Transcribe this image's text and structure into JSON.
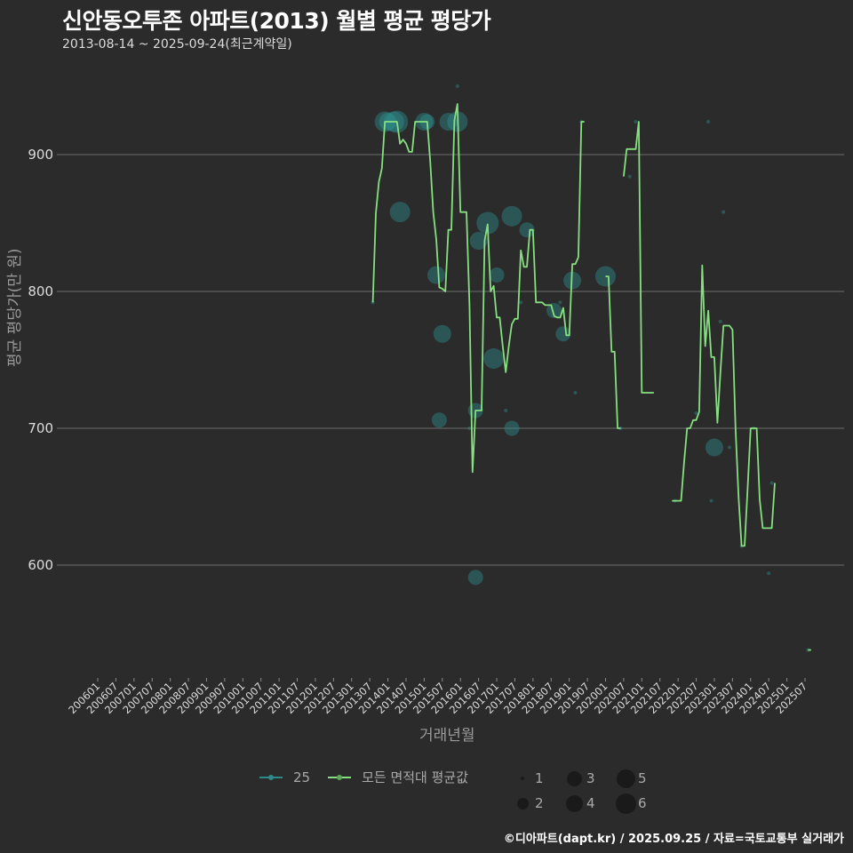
{
  "header": {
    "title": "신안동오투존 아파트(2013) 월별 평균 평당가",
    "subtitle": "2013-08-14 ~ 2025-09-24(최근계약일)"
  },
  "axes": {
    "ylabel": "평균 평당가(만 원)",
    "xlabel": "거래년월"
  },
  "legend": {
    "series": [
      {
        "label": "25",
        "color": "#2e8b8b"
      },
      {
        "label": "모든 면적대 평균값",
        "color": "#86e07f"
      }
    ],
    "sizes": [
      {
        "label": "1",
        "r": 2
      },
      {
        "label": "2",
        "r": 6
      },
      {
        "label": "3",
        "r": 9
      },
      {
        "label": "4",
        "r": 10
      },
      {
        "label": "5",
        "r": 11
      },
      {
        "label": "6",
        "r": 12
      }
    ]
  },
  "footer": {
    "credit": "©디아파트(dapt.kr) / 2025.09.25 / 자료=국토교통부 실거래가"
  },
  "colors": {
    "background": "#2b2b2b",
    "grid": "#6e6e6e",
    "line": "#86e07f",
    "bubble": "#2e8b8b",
    "tick_text": "#dcdcdc"
  },
  "chart_data": {
    "type": "line",
    "title": "신안동오투존 아파트(2013) 월별 평균 평당가",
    "subtitle": "2013-08-14 ~ 2025-09-24(최근계약일)",
    "xlabel": "거래년월",
    "ylabel": "평균 평당가(만 원)",
    "ylim": [
      520,
      960
    ],
    "yticks": [
      600,
      700,
      800,
      900
    ],
    "grid": true,
    "legend_position": "bottom",
    "x_tick_labels": [
      "200601",
      "200607",
      "200701",
      "200707",
      "200801",
      "200807",
      "200901",
      "200907",
      "201001",
      "201007",
      "201101",
      "201107",
      "201201",
      "201207",
      "201301",
      "201307",
      "201401",
      "201407",
      "201501",
      "201507",
      "201601",
      "201607",
      "201701",
      "201707",
      "201801",
      "201807",
      "201901",
      "201907",
      "202001",
      "202007",
      "202101",
      "202107",
      "202201",
      "202207",
      "202301",
      "202307",
      "202401",
      "202407",
      "202501",
      "202507"
    ],
    "series": [
      {
        "name": "모든 면적대 평균값",
        "segments": [
          [
            [
              "2013-08",
              792
            ],
            [
              "2013-09",
              857
            ],
            [
              "2013-10",
              880
            ],
            [
              "2013-11",
              890
            ],
            [
              "2013-12",
              924
            ],
            [
              "2014-01",
              924
            ],
            [
              "2014-02",
              924
            ],
            [
              "2014-03",
              924
            ],
            [
              "2014-04",
              924
            ],
            [
              "2014-05",
              908
            ],
            [
              "2014-06",
              911
            ],
            [
              "2014-07",
              908
            ],
            [
              "2014-08",
              902
            ],
            [
              "2014-09",
              902
            ],
            [
              "2014-10",
              924
            ],
            [
              "2014-11",
              924
            ],
            [
              "2014-12",
              924
            ],
            [
              "2015-01",
              924
            ],
            [
              "2015-02",
              924
            ],
            [
              "2015-03",
              895
            ],
            [
              "2015-04",
              858
            ],
            [
              "2015-05",
              838
            ],
            [
              "2015-06",
              803
            ],
            [
              "2015-07",
              802
            ],
            [
              "2015-08",
              800
            ],
            [
              "2015-09",
              845
            ],
            [
              "2015-10",
              845
            ],
            [
              "2015-11",
              925
            ],
            [
              "2015-12",
              937
            ],
            [
              "2016-01",
              858
            ],
            [
              "2016-02",
              858
            ],
            [
              "2016-03",
              858
            ],
            [
              "2016-04",
              790
            ],
            [
              "2016-05",
              668
            ],
            [
              "2016-06",
              713
            ],
            [
              "2016-07",
              713
            ],
            [
              "2016-08",
              713
            ],
            [
              "2016-09",
              837
            ],
            [
              "2016-10",
              849
            ],
            [
              "2016-11",
              800
            ],
            [
              "2016-12",
              804
            ],
            [
              "2017-01",
              781
            ],
            [
              "2017-02",
              781
            ],
            [
              "2017-03",
              760
            ],
            [
              "2017-04",
              741
            ],
            [
              "2017-05",
              760
            ],
            [
              "2017-06",
              776
            ],
            [
              "2017-07",
              780
            ],
            [
              "2017-08",
              780
            ],
            [
              "2017-09",
              830
            ],
            [
              "2017-10",
              818
            ],
            [
              "2017-11",
              818
            ],
            [
              "2017-12",
              845
            ],
            [
              "2018-01",
              845
            ],
            [
              "2018-02",
              792
            ],
            [
              "2018-03",
              792
            ],
            [
              "2018-04",
              792
            ],
            [
              "2018-05",
              790
            ],
            [
              "2018-06",
              790
            ],
            [
              "2018-07",
              790
            ],
            [
              "2018-08",
              782
            ],
            [
              "2018-09",
              781
            ],
            [
              "2018-10",
              781
            ],
            [
              "2018-11",
              788
            ],
            [
              "2018-12",
              768
            ],
            [
              "2019-01",
              768
            ],
            [
              "2019-02",
              820
            ],
            [
              "2019-03",
              820
            ],
            [
              "2019-04",
              825
            ],
            [
              "2019-05",
              924
            ],
            [
              "2019-06",
              924
            ]
          ],
          [
            [
              "2020-01",
              811
            ],
            [
              "2020-02",
              811
            ],
            [
              "2020-03",
              756
            ],
            [
              "2020-04",
              756
            ],
            [
              "2020-05",
              700
            ],
            [
              "2020-06",
              700
            ]
          ],
          [
            [
              "2020-07",
              884
            ],
            [
              "2020-08",
              904
            ],
            [
              "2020-09",
              904
            ],
            [
              "2020-10",
              904
            ],
            [
              "2020-11",
              904
            ],
            [
              "2020-12",
              924
            ],
            [
              "2021-01",
              726
            ],
            [
              "2021-02",
              726
            ],
            [
              "2021-03",
              726
            ],
            [
              "2021-04",
              726
            ],
            [
              "2021-05",
              726
            ]
          ],
          [
            [
              "2021-11",
              647
            ],
            [
              "2021-12",
              647
            ],
            [
              "2022-01",
              647
            ],
            [
              "2022-02",
              647
            ],
            [
              "2022-03",
              675
            ],
            [
              "2022-04",
              700
            ],
            [
              "2022-05",
              700
            ],
            [
              "2022-06",
              706
            ],
            [
              "2022-07",
              706
            ],
            [
              "2022-08",
              712
            ],
            [
              "2022-09",
              819
            ],
            [
              "2022-10",
              760
            ],
            [
              "2022-11",
              786
            ],
            [
              "2022-12",
              752
            ],
            [
              "2023-01",
              752
            ],
            [
              "2023-02",
              704
            ],
            [
              "2023-03",
              741
            ],
            [
              "2023-04",
              775
            ],
            [
              "2023-05",
              775
            ],
            [
              "2023-06",
              775
            ],
            [
              "2023-07",
              772
            ],
            [
              "2023-08",
              700
            ],
            [
              "2023-09",
              650
            ],
            [
              "2023-10",
              614
            ],
            [
              "2023-11",
              614
            ],
            [
              "2023-12",
              656
            ],
            [
              "2024-01",
              700
            ],
            [
              "2024-02",
              700
            ],
            [
              "2024-03",
              700
            ],
            [
              "2024-04",
              648
            ],
            [
              "2024-05",
              627
            ],
            [
              "2024-06",
              627
            ],
            [
              "2024-07",
              627
            ],
            [
              "2024-08",
              627
            ],
            [
              "2024-09",
              660
            ]
          ],
          [
            [
              "2025-08",
              538
            ],
            [
              "2025-09",
              538
            ]
          ]
        ]
      },
      {
        "name": "25",
        "type": "scatter",
        "points": [
          [
            "2013-08",
            792,
            1
          ],
          [
            "2013-12",
            924,
            5
          ],
          [
            "2014-01",
            924,
            4
          ],
          [
            "2014-03",
            924,
            5
          ],
          [
            "2014-04",
            924,
            6
          ],
          [
            "2014-05",
            858,
            5
          ],
          [
            "2015-01",
            924,
            4
          ],
          [
            "2015-02",
            924,
            3
          ],
          [
            "2015-05",
            812,
            4
          ],
          [
            "2015-06",
            706,
            3
          ],
          [
            "2015-07",
            769,
            4
          ],
          [
            "2015-09",
            924,
            4
          ],
          [
            "2015-12",
            924,
            5
          ],
          [
            "2015-12",
            950,
            1
          ],
          [
            "2016-04",
            700,
            1
          ],
          [
            "2016-06",
            713,
            3
          ],
          [
            "2016-06",
            591,
            3
          ],
          [
            "2016-07",
            837,
            4
          ],
          [
            "2016-10",
            850,
            6
          ],
          [
            "2016-12",
            751,
            5
          ],
          [
            "2017-01",
            812,
            3
          ],
          [
            "2017-04",
            713,
            1
          ],
          [
            "2017-06",
            700,
            3
          ],
          [
            "2017-06",
            855,
            5
          ],
          [
            "2017-09",
            792,
            1
          ],
          [
            "2017-11",
            845,
            3
          ],
          [
            "2018-08",
            786,
            3
          ],
          [
            "2018-10",
            792,
            1
          ],
          [
            "2018-11",
            769,
            3
          ],
          [
            "2019-02",
            808,
            4
          ],
          [
            "2019-03",
            726,
            1
          ],
          [
            "2019-05",
            924,
            1
          ],
          [
            "2020-01",
            811,
            5
          ],
          [
            "2020-06",
            700,
            1
          ],
          [
            "2020-09",
            884,
            1
          ],
          [
            "2020-11",
            924,
            1
          ],
          [
            "2021-12",
            647,
            1
          ],
          [
            "2022-07",
            711,
            1
          ],
          [
            "2022-11",
            924,
            1
          ],
          [
            "2022-12",
            647,
            1
          ],
          [
            "2023-01",
            686,
            4
          ],
          [
            "2023-03",
            778,
            1
          ],
          [
            "2023-04",
            858,
            1
          ],
          [
            "2023-06",
            686,
            1
          ],
          [
            "2023-10",
            614,
            1
          ],
          [
            "2024-02",
            700,
            1
          ],
          [
            "2024-07",
            594,
            1
          ],
          [
            "2024-08",
            660,
            1
          ],
          [
            "2025-08",
            538,
            1
          ]
        ]
      }
    ]
  }
}
